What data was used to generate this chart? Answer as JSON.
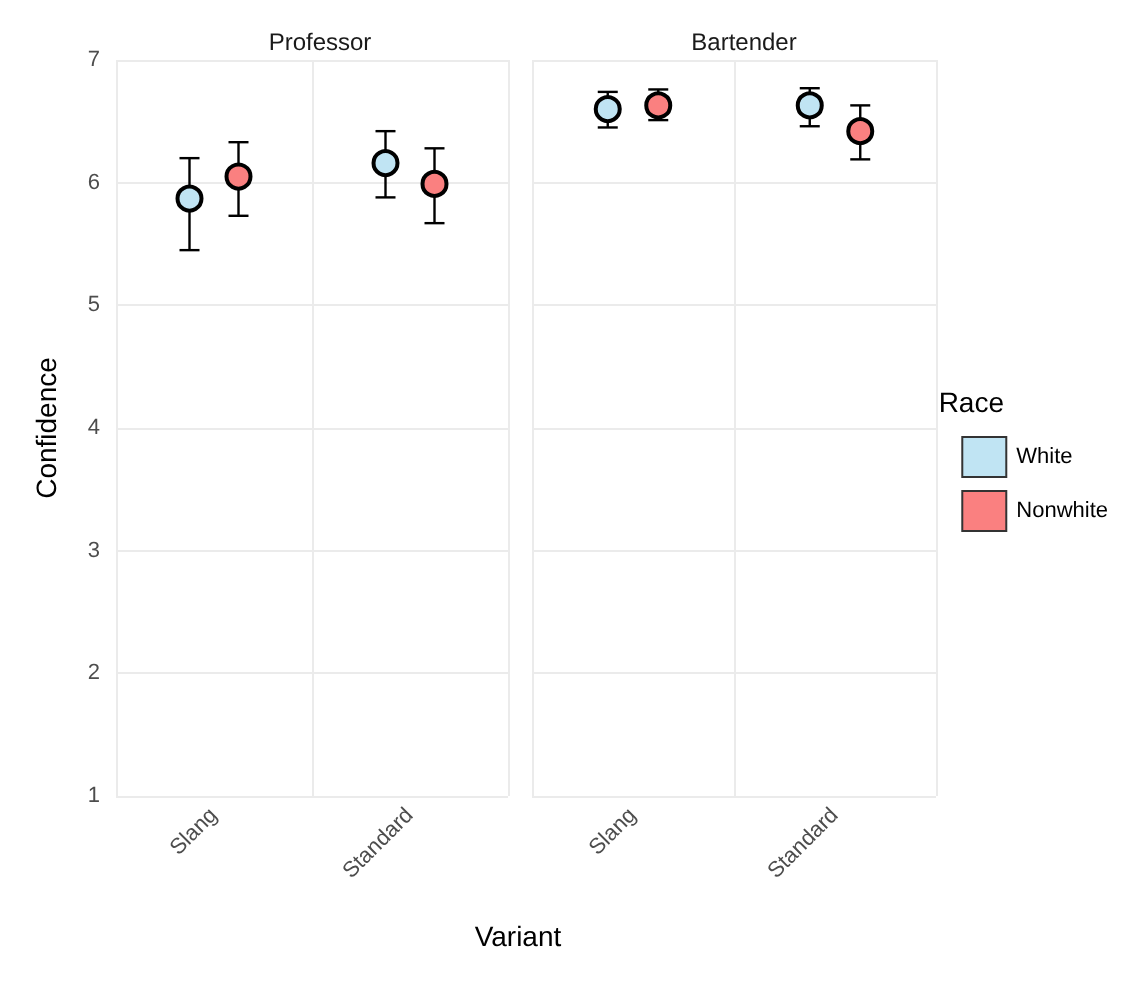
{
  "chart_data": [
    {
      "type": "scatter",
      "title": "Professor",
      "ylabel": "Confidence",
      "xlabel": "Variant",
      "categories": [
        "Slang",
        "Standard"
      ],
      "ylim": [
        1,
        7
      ],
      "yticks": [
        1,
        2,
        3,
        4,
        5,
        6,
        7
      ],
      "grid": true,
      "marker": "circle",
      "series": [
        {
          "color": "#c0e4f3",
          "values": [
            5.87,
            6.16
          ],
          "errors": [
            [
              5.45,
              6.2
            ],
            [
              5.88,
              6.42
            ]
          ]
        },
        {
          "color": "#fa8080",
          "values": [
            6.05,
            5.99
          ],
          "errors": [
            [
              5.73,
              6.33
            ],
            [
              5.67,
              6.28
            ]
          ]
        }
      ]
    },
    {
      "type": "scatter",
      "title": "Bartender",
      "legend_title": "Race",
      "legend": "right",
      "tick_labels": "x",
      "categories": [
        "Slang",
        "Standard"
      ],
      "ylim": [
        1,
        7
      ],
      "yticks": [
        1,
        2,
        3,
        4,
        5,
        6,
        7
      ],
      "grid": true,
      "marker": "circle",
      "series": [
        {
          "name": "White",
          "color": "#c0e4f3",
          "values": [
            6.6,
            6.63
          ],
          "errors": [
            [
              6.45,
              6.74
            ],
            [
              6.46,
              6.77
            ]
          ]
        },
        {
          "name": "Nonwhite",
          "color": "#fa8080",
          "values": [
            6.63,
            6.42
          ],
          "errors": [
            [
              6.51,
              6.76
            ],
            [
              6.19,
              6.63
            ]
          ]
        }
      ]
    }
  ]
}
